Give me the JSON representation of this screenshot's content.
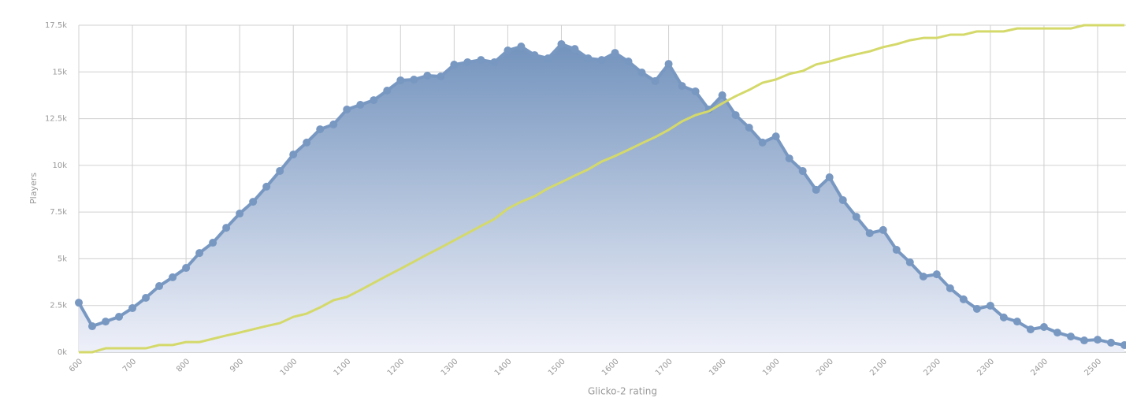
{
  "chart_data": {
    "type": "area",
    "x_label": "Glicko-2 rating",
    "y_label": "Players",
    "x": [
      600,
      625,
      650,
      675,
      700,
      725,
      750,
      775,
      800,
      825,
      850,
      875,
      900,
      925,
      950,
      975,
      1000,
      1025,
      1050,
      1075,
      1100,
      1125,
      1150,
      1175,
      1200,
      1225,
      1250,
      1275,
      1300,
      1325,
      1350,
      1375,
      1400,
      1425,
      1450,
      1475,
      1500,
      1525,
      1550,
      1575,
      1600,
      1625,
      1650,
      1675,
      1700,
      1725,
      1750,
      1775,
      1800,
      1825,
      1850,
      1875,
      1900,
      1925,
      1950,
      1975,
      2000,
      2025,
      2050,
      2075,
      2100,
      2125,
      2150,
      2175,
      2200,
      2225,
      2250,
      2275,
      2300,
      2325,
      2350,
      2375,
      2400,
      2425,
      2450,
      2475,
      2500,
      2525,
      2550
    ],
    "series": [
      {
        "color": "#7898c2",
        "fill": true,
        "markers": true,
        "values": [
          2650,
          1390,
          1640,
          1900,
          2360,
          2910,
          3540,
          4010,
          4510,
          5310,
          5860,
          6660,
          7420,
          8050,
          8860,
          9700,
          10580,
          11220,
          11930,
          12190,
          12990,
          13240,
          13490,
          14000,
          14550,
          14590,
          14800,
          14760,
          15390,
          15520,
          15640,
          15520,
          16150,
          16360,
          15900,
          15730,
          16490,
          16230,
          15730,
          15640,
          16020,
          15560,
          14970,
          14510,
          15430,
          14250,
          13960,
          12990,
          13750,
          12690,
          12020,
          11220,
          11550,
          10370,
          9700,
          8690,
          9360,
          8140,
          7250,
          6370,
          6540,
          5480,
          4810,
          4050,
          4170,
          3420,
          2830,
          2320,
          2490,
          1860,
          1640,
          1220,
          1350,
          1050,
          840,
          630,
          670,
          510,
          380
        ]
      },
      {
        "color": "#d4d96a",
        "axis": "y2",
        "values": [
          0,
          0,
          1.2,
          1.2,
          1.2,
          1.2,
          2.2,
          2.2,
          3.1,
          3.1,
          4.1,
          5.1,
          6.0,
          7.0,
          8.0,
          8.9,
          10.8,
          11.8,
          13.7,
          15.9,
          16.9,
          19.0,
          21.2,
          23.4,
          25.5,
          27.7,
          29.9,
          32.0,
          34.2,
          36.4,
          38.6,
          40.7,
          43.9,
          46.0,
          47.7,
          50.1,
          52.0,
          54.0,
          55.9,
          58.3,
          60.0,
          61.9,
          63.9,
          65.8,
          68.0,
          70.6,
          72.5,
          73.7,
          76.1,
          78.3,
          80.2,
          82.4,
          83.4,
          85.1,
          86.0,
          88.0,
          88.9,
          90.1,
          91.1,
          92.0,
          93.3,
          94.2,
          95.4,
          96.1,
          96.1,
          97.1,
          97.1,
          98.1,
          98.1,
          98.1,
          99.0,
          99.0,
          99.0,
          99.0,
          99.0,
          100,
          100,
          100,
          100
        ]
      }
    ],
    "xlim": [
      600,
      2550
    ],
    "xticks": [
      600,
      700,
      800,
      900,
      1000,
      1100,
      1200,
      1300,
      1400,
      1500,
      1600,
      1700,
      1800,
      1900,
      2000,
      2100,
      2200,
      2300,
      2400,
      2500
    ],
    "ylim": [
      0,
      17500
    ],
    "yticks": [
      {
        "value": 0,
        "label": "0k"
      },
      {
        "value": 2500,
        "label": "2.5k"
      },
      {
        "value": 5000,
        "label": "5k"
      },
      {
        "value": 7500,
        "label": "7.5k"
      },
      {
        "value": 10000,
        "label": "10k"
      },
      {
        "value": 12500,
        "label": "12.5k"
      },
      {
        "value": 15000,
        "label": "15k"
      },
      {
        "value": 17500,
        "label": "17.5k"
      }
    ],
    "y2lim": [
      0,
      100
    ],
    "grid": true
  }
}
